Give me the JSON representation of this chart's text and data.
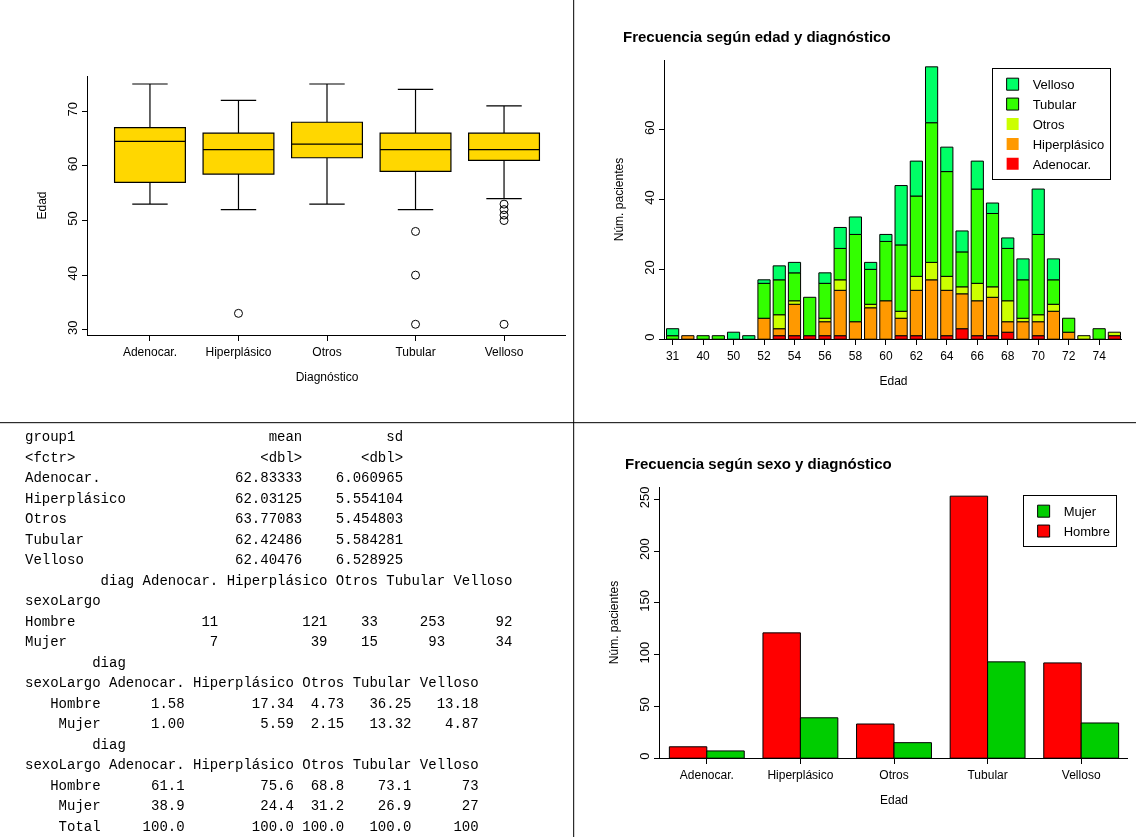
{
  "chart_data": [
    {
      "type": "box",
      "xlabel": "Diagnóstico",
      "ylabel": "Edad",
      "categories": [
        "Adenocar.",
        "Hiperplásico",
        "Otros",
        "Tubular",
        "Velloso"
      ],
      "color": "#ffd700",
      "ylim": [
        29,
        76.5
      ],
      "yticks": [
        30,
        40,
        50,
        60,
        70
      ],
      "boxes": [
        {
          "low": 53,
          "q1": 57,
          "median": 64.5,
          "q3": 67,
          "high": 75
        },
        {
          "low": 52,
          "q1": 58.5,
          "median": 63,
          "q3": 66,
          "high": 72,
          "outliers": [
            33
          ]
        },
        {
          "low": 53,
          "q1": 61.5,
          "median": 64,
          "q3": 68,
          "high": 75
        },
        {
          "low": 52,
          "q1": 59,
          "median": 63,
          "q3": 66,
          "high": 74,
          "outliers": [
            48,
            40,
            31
          ]
        },
        {
          "low": 54,
          "q1": 61,
          "median": 63,
          "q3": 66,
          "high": 71,
          "outliers": [
            53,
            52,
            51,
            50,
            31
          ]
        }
      ]
    },
    {
      "type": "bar",
      "stacked": true,
      "title": "Frecuencia según edad y diagnóstico",
      "xlabel": "Edad",
      "ylabel": "Núm. pacientes",
      "ylim": [
        0,
        80
      ],
      "yticks": [
        0,
        20,
        40,
        60
      ],
      "legend": "top right",
      "categories": [
        "31",
        null,
        "40",
        null,
        "50",
        null,
        "52",
        null,
        "54",
        null,
        "56",
        null,
        "58",
        null,
        "60",
        null,
        "62",
        null,
        "64",
        null,
        "66",
        null,
        "68",
        null,
        "70",
        null,
        "72",
        null,
        "74",
        null
      ],
      "series": [
        {
          "name": "Adenocar.",
          "color": "#ff0000",
          "values": [
            0,
            0,
            0,
            0,
            0,
            0,
            0,
            1,
            1,
            1,
            1,
            1,
            0,
            0,
            0,
            1,
            1,
            0,
            1,
            3,
            1,
            1,
            2,
            0,
            1,
            0,
            0,
            0,
            0,
            1
          ]
        },
        {
          "name": "Hiperplásico",
          "color": "#ff9900",
          "values": [
            0,
            1,
            0,
            0,
            0,
            0,
            6,
            2,
            9,
            0,
            4,
            13,
            5,
            9,
            11,
            5,
            13,
            17,
            13,
            10,
            10,
            11,
            3,
            5,
            4,
            8,
            2,
            0,
            0,
            0
          ]
        },
        {
          "name": "Otros",
          "color": "#ccff00",
          "values": [
            0,
            0,
            0,
            0,
            0,
            0,
            0,
            4,
            1,
            0,
            1,
            3,
            0,
            1,
            0,
            2,
            4,
            5,
            4,
            2,
            5,
            3,
            6,
            1,
            2,
            2,
            0,
            1,
            0,
            1
          ]
        },
        {
          "name": "Tubular",
          "color": "#33ff00",
          "values": [
            1,
            0,
            1,
            1,
            0,
            0,
            10,
            10,
            8,
            11,
            10,
            9,
            25,
            10,
            17,
            19,
            23,
            40,
            30,
            10,
            27,
            21,
            15,
            11,
            23,
            7,
            4,
            0,
            3,
            0
          ]
        },
        {
          "name": "Velloso",
          "color": "#00ff66",
          "values": [
            2,
            0,
            0,
            0,
            2,
            1,
            1,
            4,
            3,
            0,
            3,
            6,
            5,
            2,
            2,
            17,
            10,
            16,
            7,
            6,
            8,
            3,
            3,
            6,
            13,
            6,
            0,
            0,
            0,
            0
          ]
        }
      ]
    },
    {
      "type": "other",
      "annotations": [
        "group1                       mean          sd",
        "<fctr>                      <dbl>       <dbl>",
        "Adenocar.                62.83333    6.060965",
        "Hiperplásico             62.03125    5.554104",
        "Otros                    63.77083    5.454803",
        "Tubular                  62.42486    5.584281",
        "Velloso                  62.40476    6.528925",
        "         diag Adenocar. Hiperplásico Otros Tubular Velloso",
        "sexoLargo",
        "Hombre               11          121    33     253      92",
        "Mujer                 7           39    15      93      34",
        "        diag",
        "sexoLargo Adenocar. Hiperplásico Otros Tubular Velloso",
        "   Hombre      1.58        17.34  4.73   36.25   13.18",
        "    Mujer      1.00         5.59  2.15   13.32    4.87",
        "        diag",
        "sexoLargo Adenocar. Hiperplásico Otros Tubular Velloso",
        "   Hombre      61.1         75.6  68.8    73.1      73",
        "    Mujer      38.9         24.4  31.2    26.9      27",
        "    Total     100.0        100.0 100.0   100.0     100"
      ]
    },
    {
      "type": "bar",
      "title": "Frecuencia según sexo y diagnóstico",
      "xlabel": "Edad",
      "ylabel": "Núm. pacientes",
      "ylim": [
        0,
        262
      ],
      "yticks": [
        0,
        50,
        100,
        150,
        200,
        250
      ],
      "legend": "top right",
      "categories": [
        "Adenocar.",
        "Hiperplásico",
        "Otros",
        "Tubular",
        "Velloso"
      ],
      "series": [
        {
          "name": "Hombre",
          "color": "#ff0000",
          "values": [
            11,
            121,
            33,
            253,
            92
          ]
        },
        {
          "name": "Mujer",
          "color": "#00cd00",
          "values": [
            7,
            39,
            15,
            93,
            34
          ]
        }
      ]
    }
  ]
}
